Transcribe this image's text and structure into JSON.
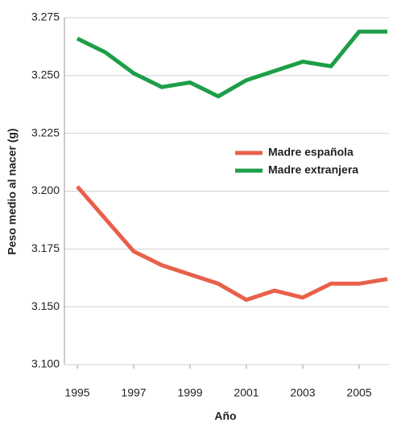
{
  "chart_data": {
    "type": "line",
    "x_label": "Año",
    "y_label": "Peso medio al nacer (g)",
    "x": [
      1995,
      1996,
      1997,
      1998,
      1999,
      2000,
      2001,
      2002,
      2003,
      2004,
      2005,
      2006
    ],
    "series": [
      {
        "name": "Madre española",
        "color": "#e8604c",
        "values": [
          3202,
          3188,
          3174,
          3168,
          3164,
          3160,
          3153,
          3157,
          3154,
          3160,
          3160,
          3162
        ]
      },
      {
        "name": "Madre extranjera",
        "color": "#1e9e48",
        "values": [
          3266,
          3260,
          3251,
          3245,
          3247,
          3241,
          3248,
          3252,
          3256,
          3254,
          3269,
          3269
        ]
      }
    ],
    "xlim": [
      1995,
      2006
    ],
    "xticks": [
      1995,
      1997,
      1999,
      2001,
      2003,
      2005
    ],
    "ylim": [
      3100,
      3275
    ],
    "yticks": [
      {
        "value": 3100,
        "label": "3.100"
      },
      {
        "value": 3150,
        "label": "3.150"
      },
      {
        "value": 3175,
        "label": "3.175"
      },
      {
        "value": 3200,
        "label": "3.200"
      },
      {
        "value": 3225,
        "label": "3.225"
      },
      {
        "value": 3250,
        "label": "3.250"
      },
      {
        "value": 3275,
        "label": "3.275"
      }
    ],
    "grid": true
  }
}
